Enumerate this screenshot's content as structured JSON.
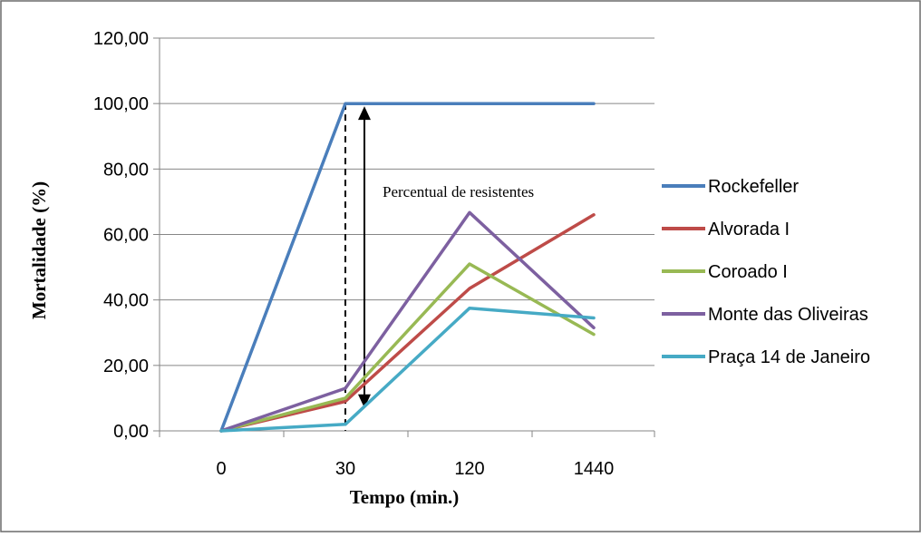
{
  "chart_data": {
    "type": "line",
    "title": "",
    "xlabel": "Tempo (min.)",
    "ylabel": "Mortalidade (%)",
    "categories": [
      "0",
      "30",
      "120",
      "1440"
    ],
    "yticks": [
      "0,00",
      "20,00",
      "40,00",
      "60,00",
      "80,00",
      "100,00",
      "120,00"
    ],
    "ylim": [
      0,
      120
    ],
    "grid": true,
    "legend_position": "right",
    "annotation": "Percentual de resistentes",
    "series": [
      {
        "name": "Rockefeller",
        "color": "#4a7ebb",
        "values": [
          0,
          100,
          100,
          100
        ]
      },
      {
        "name": "Alvorada I",
        "color": "#be4b48",
        "values": [
          0,
          9,
          43.5,
          66
        ]
      },
      {
        "name": "Coroado I",
        "color": "#98b954",
        "values": [
          0,
          10,
          51,
          29.5
        ]
      },
      {
        "name": "Monte das Oliveiras",
        "color": "#7d60a0",
        "values": [
          0,
          13,
          66.7,
          31.5
        ]
      },
      {
        "name": "Praça 14 de Janeiro",
        "color": "#46aac5",
        "values": [
          0,
          2,
          37.5,
          34.5
        ]
      }
    ]
  }
}
